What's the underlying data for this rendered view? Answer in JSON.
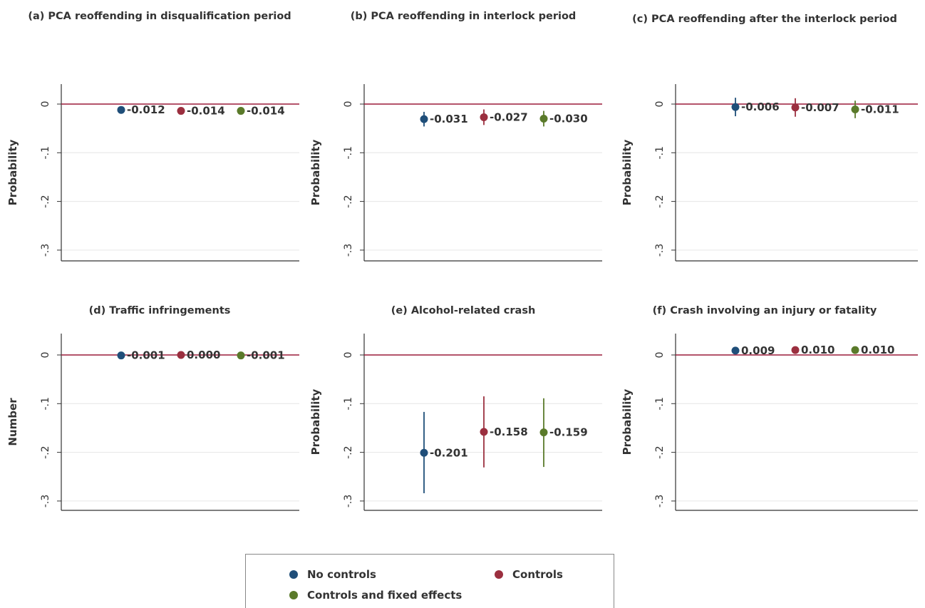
{
  "colors": {
    "no_controls": "#1f4e79",
    "controls": "#9b2f3f",
    "controls_fe": "#5a7a2a",
    "zero_line": "#9b1b3a",
    "grid": "#e6e6e6",
    "axis": "#333333"
  },
  "legend": {
    "entries": [
      {
        "label": "No controls",
        "color_key": "no_controls"
      },
      {
        "label": "Controls",
        "color_key": "controls"
      },
      {
        "label": "Controls and fixed effects",
        "color_key": "controls_fe"
      }
    ]
  },
  "chart_data": [
    {
      "type": "scatter",
      "title": "(a) PCA reoffending in disqualification period",
      "ylabel": "Probability",
      "ylim": [
        -0.31,
        0.04
      ],
      "yticks": [
        0,
        -0.1,
        -0.2,
        -0.3
      ],
      "ytick_labels": [
        "0",
        "-.1",
        "-.2",
        "-.3"
      ],
      "reference_line": 0,
      "grid": true,
      "series": [
        {
          "name": "No controls",
          "value": -0.012,
          "label": "-0.012",
          "ci": [
            -0.018,
            -0.006
          ]
        },
        {
          "name": "Controls",
          "value": -0.014,
          "label": "-0.014",
          "ci": [
            -0.021,
            -0.007
          ]
        },
        {
          "name": "Controls and fixed effects",
          "value": -0.014,
          "label": "-0.014",
          "ci": [
            -0.021,
            -0.007
          ]
        }
      ]
    },
    {
      "type": "scatter",
      "title": "(b) PCA reoffending in interlock period",
      "ylabel": "Probability",
      "ylim": [
        -0.31,
        0.04
      ],
      "yticks": [
        0,
        -0.1,
        -0.2,
        -0.3
      ],
      "ytick_labels": [
        "0",
        "-.1",
        "-.2",
        "-.3"
      ],
      "reference_line": 0,
      "grid": true,
      "series": [
        {
          "name": "No controls",
          "value": -0.031,
          "label": "-0.031",
          "ci": [
            -0.046,
            -0.016
          ]
        },
        {
          "name": "Controls",
          "value": -0.027,
          "label": "-0.027",
          "ci": [
            -0.043,
            -0.011
          ]
        },
        {
          "name": "Controls and fixed effects",
          "value": -0.03,
          "label": "-0.030",
          "ci": [
            -0.046,
            -0.014
          ]
        }
      ]
    },
    {
      "type": "scatter",
      "title": "(c) PCA reoffending after the interlock period",
      "ylabel": "Probability",
      "ylim": [
        -0.31,
        0.04
      ],
      "yticks": [
        0,
        -0.1,
        -0.2,
        -0.3
      ],
      "ytick_labels": [
        "0",
        "-.1",
        "-.2",
        "-.3"
      ],
      "reference_line": 0,
      "grid": true,
      "series": [
        {
          "name": "No controls",
          "value": -0.006,
          "label": "-0.006",
          "ci": [
            -0.025,
            0.013
          ]
        },
        {
          "name": "Controls",
          "value": -0.007,
          "label": "-0.007",
          "ci": [
            -0.026,
            0.012
          ]
        },
        {
          "name": "Controls and fixed effects",
          "value": -0.011,
          "label": "-0.011",
          "ci": [
            -0.029,
            0.007
          ]
        }
      ]
    },
    {
      "type": "scatter",
      "title": "(d) Traffic infringements",
      "ylabel": "Number",
      "ylim": [
        -0.31,
        0.04
      ],
      "yticks": [
        0,
        -0.1,
        -0.2,
        -0.3
      ],
      "ytick_labels": [
        "0",
        "-.1",
        "-.2",
        "-.3"
      ],
      "reference_line": 0,
      "grid": true,
      "series": [
        {
          "name": "No controls",
          "value": -0.001,
          "label": "-0.001",
          "ci": [
            -0.004,
            0.002
          ]
        },
        {
          "name": "Controls",
          "value": 0.0,
          "label": "0.000",
          "ci": [
            -0.003,
            0.003
          ]
        },
        {
          "name": "Controls and fixed effects",
          "value": -0.001,
          "label": "-0.001",
          "ci": [
            -0.004,
            0.002
          ]
        }
      ]
    },
    {
      "type": "scatter",
      "title": "(e) Alcohol-related crash",
      "ylabel": "Probability",
      "ylim": [
        -0.31,
        0.04
      ],
      "yticks": [
        0,
        -0.1,
        -0.2,
        -0.3
      ],
      "ytick_labels": [
        "0",
        "-.1",
        "-.2",
        "-.3"
      ],
      "reference_line": 0,
      "grid": true,
      "series": [
        {
          "name": "No controls",
          "value": -0.201,
          "label": "-0.201",
          "ci": [
            -0.284,
            -0.117
          ]
        },
        {
          "name": "Controls",
          "value": -0.158,
          "label": "-0.158",
          "ci": [
            -0.231,
            -0.085
          ]
        },
        {
          "name": "Controls and fixed effects",
          "value": -0.159,
          "label": "-0.159",
          "ci": [
            -0.23,
            -0.089
          ]
        }
      ]
    },
    {
      "type": "scatter",
      "title": "(f) Crash involving an injury or fatality",
      "ylabel": "Probability",
      "ylim": [
        -0.31,
        0.04
      ],
      "yticks": [
        0,
        -0.1,
        -0.2,
        -0.3
      ],
      "ytick_labels": [
        "0",
        "-.1",
        "-.2",
        "-.3"
      ],
      "reference_line": 0,
      "grid": true,
      "series": [
        {
          "name": "No controls",
          "value": 0.009,
          "label": "0.009",
          "ci": [
            0.004,
            0.014
          ]
        },
        {
          "name": "Controls",
          "value": 0.01,
          "label": "0.010",
          "ci": [
            0.005,
            0.015
          ]
        },
        {
          "name": "Controls and fixed effects",
          "value": 0.01,
          "label": "0.010",
          "ci": [
            0.005,
            0.015
          ]
        }
      ]
    }
  ]
}
